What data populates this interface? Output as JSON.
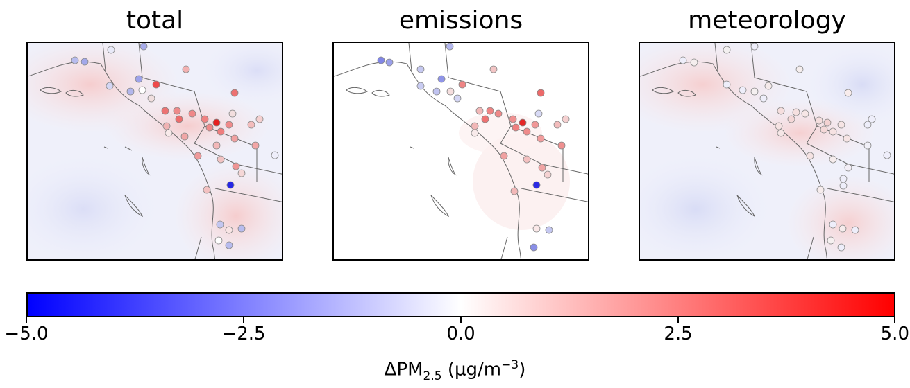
{
  "panels": [
    {
      "title": "total"
    },
    {
      "title": "emissions"
    },
    {
      "title": "meteorology"
    }
  ],
  "colorbar": {
    "min": -5.0,
    "max": 5.0,
    "colormap": "bwr",
    "low_color": "#0000ff",
    "mid_color": "#ffffff",
    "high_color": "#ff0000",
    "ticks": [
      "−5.0",
      "−2.5",
      "0.0",
      "2.5",
      "5.0"
    ],
    "label_prefix": "ΔPM",
    "label_sub": "2.5",
    "label_unit_open": " (μg/m",
    "label_sup": "−3",
    "label_close": ")"
  }
}
